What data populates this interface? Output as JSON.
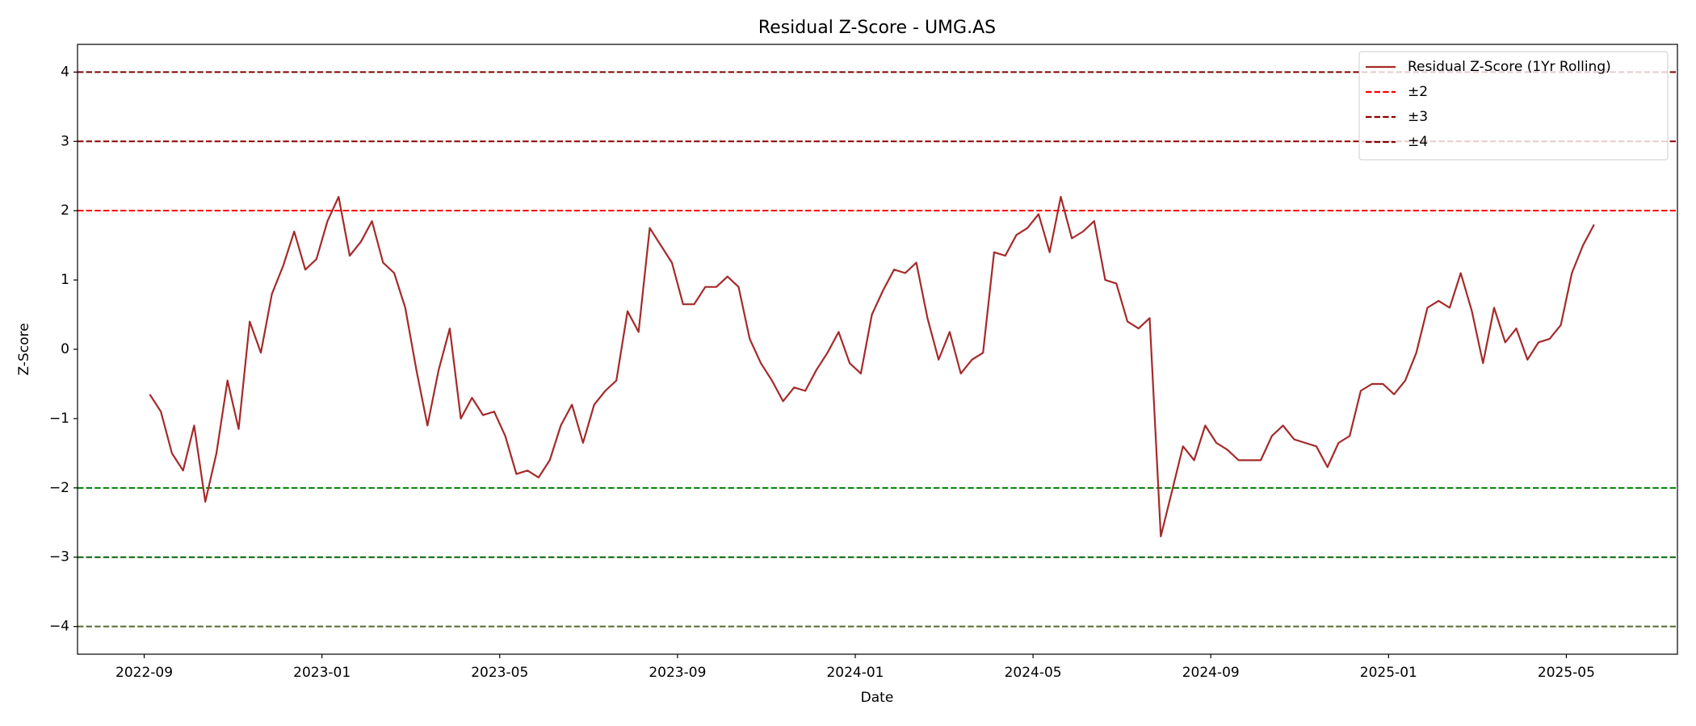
{
  "chart_data": {
    "type": "line",
    "title": "Residual Z-Score - UMG.AS",
    "x_label": "Date",
    "y_label": "Z-Score",
    "xlim": [
      "2022-07",
      "2025-07"
    ],
    "xticks": [
      "2022-09",
      "2023-01",
      "2023-05",
      "2023-09",
      "2024-01",
      "2024-05",
      "2024-09",
      "2025-01",
      "2025-05"
    ],
    "ylim": [
      -4.4,
      4.4
    ],
    "yticks": [
      {
        "value": -4,
        "label": "−4"
      },
      {
        "value": -3,
        "label": "−3"
      },
      {
        "value": -2,
        "label": "−2"
      },
      {
        "value": -1,
        "label": "−1"
      },
      0,
      1,
      2,
      3,
      4
    ],
    "grid": false,
    "legend": "upper right",
    "series": [
      {
        "name": "Residual Z-Score (1Yr Rolling)",
        "color": "#a52a2a",
        "x": [
          "2022-09",
          "2022-09",
          "2022-09",
          "2022-09",
          "2022-10",
          "2022-10",
          "2022-10",
          "2022-10",
          "2022-11",
          "2022-11",
          "2022-11",
          "2022-11",
          "2022-12",
          "2022-12",
          "2022-12",
          "2022-12",
          "2023-01",
          "2023-01",
          "2023-01",
          "2023-01",
          "2023-02",
          "2023-02",
          "2023-02",
          "2023-02",
          "2023-03",
          "2023-03",
          "2023-03",
          "2023-03",
          "2023-04",
          "2023-04",
          "2023-04",
          "2023-04",
          "2023-05",
          "2023-05",
          "2023-05",
          "2023-05",
          "2023-06",
          "2023-06",
          "2023-06",
          "2023-06",
          "2023-07",
          "2023-07",
          "2023-07",
          "2023-07",
          "2023-08",
          "2023-08",
          "2023-08",
          "2023-08",
          "2023-09",
          "2023-09",
          "2023-09",
          "2023-09",
          "2023-10",
          "2023-10",
          "2023-10",
          "2023-10",
          "2023-11",
          "2023-11",
          "2023-11",
          "2023-11",
          "2023-12",
          "2023-12",
          "2023-12",
          "2023-12",
          "2024-01",
          "2024-01",
          "2024-01",
          "2024-01",
          "2024-02",
          "2024-02",
          "2024-02",
          "2024-02",
          "2024-03",
          "2024-03",
          "2024-03",
          "2024-03",
          "2024-04",
          "2024-04",
          "2024-04",
          "2024-04",
          "2024-05",
          "2024-05",
          "2024-05",
          "2024-05",
          "2024-06",
          "2024-06",
          "2024-06",
          "2024-06",
          "2024-07",
          "2024-07",
          "2024-07",
          "2024-07",
          "2024-08",
          "2024-08",
          "2024-08",
          "2024-08",
          "2024-09",
          "2024-09",
          "2024-09",
          "2024-09",
          "2024-10",
          "2024-10",
          "2024-10",
          "2024-10",
          "2024-11",
          "2024-11",
          "2024-11",
          "2024-11",
          "2024-12",
          "2024-12",
          "2024-12",
          "2024-12",
          "2025-01",
          "2025-01",
          "2025-01",
          "2025-01",
          "2025-02",
          "2025-02",
          "2025-02",
          "2025-02",
          "2025-03",
          "2025-03",
          "2025-03",
          "2025-03",
          "2025-04",
          "2025-04",
          "2025-04",
          "2025-04",
          "2025-05",
          "2025-05",
          "2025-05"
        ],
        "values": [
          -0.65,
          -0.9,
          -1.5,
          -1.75,
          -1.1,
          -2.2,
          -1.5,
          -0.45,
          -1.15,
          0.4,
          -0.05,
          0.8,
          1.2,
          1.7,
          1.15,
          1.3,
          1.85,
          2.2,
          1.35,
          1.55,
          1.85,
          1.25,
          1.1,
          0.6,
          -0.3,
          -1.1,
          -0.3,
          0.3,
          -1.0,
          -0.7,
          -0.95,
          -0.9,
          -1.25,
          -1.8,
          -1.75,
          -1.85,
          -1.6,
          -1.1,
          -0.8,
          -1.35,
          -0.8,
          -0.6,
          -0.45,
          0.55,
          0.25,
          1.75,
          1.5,
          1.25,
          0.65,
          0.65,
          0.9,
          0.9,
          1.05,
          0.9,
          0.15,
          -0.2,
          -0.45,
          -0.75,
          -0.55,
          -0.6,
          -0.3,
          -0.05,
          0.25,
          -0.2,
          -0.35,
          0.5,
          0.85,
          1.15,
          1.1,
          1.25,
          0.45,
          -0.15,
          0.25,
          -0.35,
          -0.15,
          -0.05,
          1.4,
          1.35,
          1.65,
          1.75,
          1.95,
          1.4,
          2.2,
          1.6,
          1.7,
          1.85,
          1.0,
          0.95,
          0.4,
          0.3,
          0.45,
          -2.7,
          -2.05,
          -1.4,
          -1.6,
          -1.1,
          -1.35,
          -1.45,
          -1.6,
          -1.6,
          -1.6,
          -1.25,
          -1.1,
          -1.3,
          -1.35,
          -1.4,
          -1.7,
          -1.35,
          -1.25,
          -0.6,
          -0.5,
          -0.5,
          -0.65,
          -0.45,
          -0.05,
          0.6,
          0.7,
          0.6,
          1.1,
          0.55,
          -0.2,
          0.6,
          0.1,
          0.3,
          -0.15,
          0.1,
          0.15,
          0.35,
          1.1,
          1.5,
          1.8
        ]
      }
    ],
    "thresholds": [
      {
        "name": "±2",
        "values": [
          2,
          -2
        ],
        "colors": [
          "#ff0000",
          "#008000"
        ]
      },
      {
        "name": "±3",
        "values": [
          3,
          -3
        ],
        "colors": [
          "#8b0000",
          "#006400"
        ]
      },
      {
        "name": "±4",
        "values": [
          4,
          -4
        ],
        "colors": [
          "#800000",
          "#556b2f"
        ]
      }
    ]
  }
}
